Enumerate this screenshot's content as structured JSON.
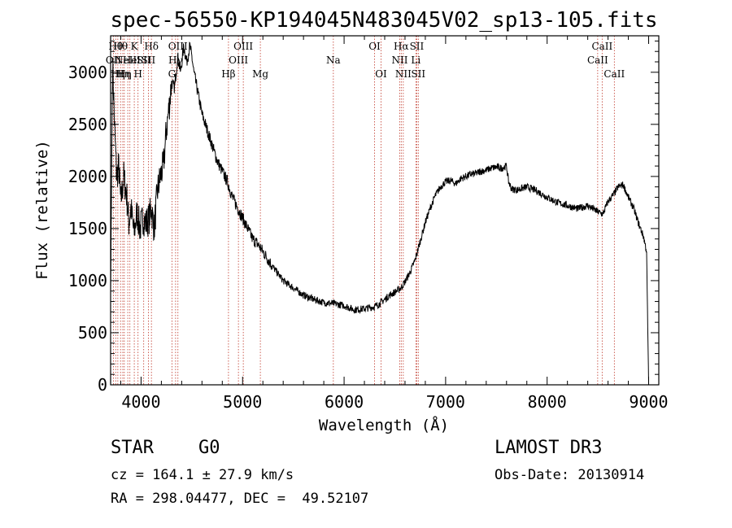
{
  "chart_data": {
    "type": "line",
    "title": "spec-56550-KP194045N483045V02_sp13-105.fits",
    "xlabel": "Wavelength (Å)",
    "ylabel": "Flux (relative)",
    "xlim": [
      3700,
      9100
    ],
    "ylim": [
      0,
      3350
    ],
    "x_ticks": [
      4000,
      5000,
      6000,
      7000,
      8000,
      9000
    ],
    "y_ticks": [
      0,
      500,
      1000,
      1500,
      2000,
      2500,
      3000
    ],
    "grid": false,
    "series": [
      {
        "x": [
          3700,
          3720,
          3740,
          3760,
          3780,
          3800,
          3830,
          3860,
          3880,
          3900,
          3930,
          3960,
          3990,
          4020,
          4050,
          4080,
          4100,
          4130,
          4160,
          4190,
          4220,
          4250,
          4280,
          4300,
          4330,
          4360,
          4390,
          4420,
          4450,
          4480,
          4500,
          4520,
          4550,
          4580,
          4600,
          4650,
          4700,
          4750,
          4800,
          4850,
          4900,
          4950,
          5000,
          5050,
          5100,
          5150,
          5200,
          5300,
          5400,
          5500,
          5600,
          5700,
          5800,
          5900,
          6000,
          6100,
          6200,
          6300,
          6350,
          6400,
          6450,
          6500,
          6560,
          6600,
          6650,
          6700,
          6750,
          6800,
          6850,
          6900,
          6950,
          7000,
          7050,
          7100,
          7150,
          7200,
          7250,
          7300,
          7350,
          7400,
          7450,
          7500,
          7550,
          7600,
          7620,
          7650,
          7700,
          7800,
          7900,
          8000,
          8100,
          8200,
          8300,
          8400,
          8500,
          8550,
          8600,
          8650,
          8700,
          8750,
          8800,
          8850,
          8900,
          8950,
          8980,
          9000
        ],
        "y": [
          900,
          3100,
          2450,
          2000,
          2100,
          1750,
          2000,
          1800,
          1550,
          1700,
          1450,
          1650,
          1500,
          1600,
          1550,
          1600,
          1700,
          1500,
          1850,
          2000,
          2100,
          2450,
          2700,
          2900,
          2850,
          3150,
          3000,
          3250,
          3100,
          3250,
          3150,
          3000,
          2850,
          2700,
          2600,
          2450,
          2300,
          2150,
          2050,
          1950,
          1800,
          1700,
          1600,
          1500,
          1400,
          1350,
          1280,
          1130,
          1000,
          930,
          860,
          820,
          790,
          780,
          760,
          720,
          730,
          750,
          780,
          820,
          860,
          890,
          930,
          990,
          1080,
          1200,
          1380,
          1560,
          1700,
          1820,
          1900,
          1950,
          1960,
          1930,
          1980,
          2000,
          2020,
          2030,
          2050,
          2060,
          2080,
          2090,
          2080,
          2100,
          1950,
          1880,
          1870,
          1900,
          1860,
          1800,
          1750,
          1720,
          1690,
          1720,
          1660,
          1640,
          1760,
          1820,
          1900,
          1920,
          1800,
          1700,
          1550,
          1420,
          1280,
          0
        ]
      }
    ],
    "lines": [
      {
        "x": 3728,
        "label": "OII",
        "row": 2
      },
      {
        "x": 3750,
        "label": "Hθ",
        "row": 1
      },
      {
        "x": 3771,
        "label": "Hη",
        "row": 3
      },
      {
        "x": 3798,
        "label": "Hθ",
        "row": 1
      },
      {
        "x": 3820,
        "label": "Hη",
        "row": 3
      },
      {
        "x": 3835,
        "label": "Hη",
        "row": 3
      },
      {
        "x": 3869,
        "label": "NeIII",
        "row": 2
      },
      {
        "x": 3890,
        "label": "He",
        "row": 2
      },
      {
        "x": 3933,
        "label": "K",
        "row": 1
      },
      {
        "x": 3970,
        "label": "H",
        "row": 3
      },
      {
        "x": 4026,
        "label": "SII",
        "row": 2
      },
      {
        "x": 4072,
        "label": "SII",
        "row": 2
      },
      {
        "x": 4102,
        "label": "Hδ",
        "row": 1
      },
      {
        "x": 4304,
        "label": "G",
        "row": 3
      },
      {
        "x": 4340,
        "label": "Hγ",
        "row": 2
      },
      {
        "x": 4363,
        "label": "OIII",
        "row": 1
      },
      {
        "x": 4861,
        "label": "Hβ",
        "row": 3
      },
      {
        "x": 4959,
        "label": "OIII",
        "row": 2
      },
      {
        "x": 5007,
        "label": "OIII",
        "row": 1
      },
      {
        "x": 5175,
        "label": "Mg",
        "row": 3
      },
      {
        "x": 5894,
        "label": "Na",
        "row": 2
      },
      {
        "x": 6300,
        "label": "OI",
        "row": 1
      },
      {
        "x": 6364,
        "label": "OI",
        "row": 3
      },
      {
        "x": 6548,
        "label": "NII",
        "row": 2
      },
      {
        "x": 6563,
        "label": "Hα",
        "row": 1
      },
      {
        "x": 6583,
        "label": "NII",
        "row": 3
      },
      {
        "x": 6707,
        "label": "Li",
        "row": 2
      },
      {
        "x": 6716,
        "label": "SII",
        "row": 1
      },
      {
        "x": 6731,
        "label": "SII",
        "row": 3
      },
      {
        "x": 8498,
        "label": "CaII",
        "row": 2
      },
      {
        "x": 8542,
        "label": "CaII",
        "row": 1
      },
      {
        "x": 8662,
        "label": "CaII",
        "row": 3
      }
    ]
  },
  "info": {
    "class": "STAR",
    "subclass": "G0",
    "cz": "cz = 164.1 ± 27.9 km/s",
    "radec": "RA = 298.04477, DEC =  49.52107",
    "survey": "LAMOST DR3",
    "obsdate": "Obs-Date: 20130914"
  }
}
